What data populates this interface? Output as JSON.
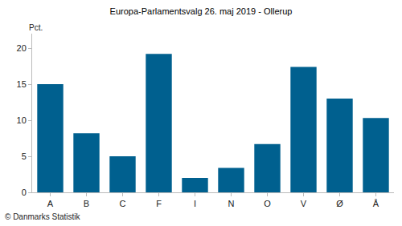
{
  "chart_data": {
    "type": "bar",
    "title": "Europa-Parlamentsvalg 26. maj 2019 - Ollerup",
    "ylabel": "Pct.",
    "source": "© Danmarks Statistik",
    "categories": [
      "A",
      "B",
      "C",
      "F",
      "I",
      "N",
      "O",
      "V",
      "Ø",
      "Å"
    ],
    "values": [
      15.0,
      8.2,
      5.0,
      19.2,
      2.0,
      3.4,
      6.7,
      17.4,
      13.0,
      10.3
    ],
    "color": "#00608f",
    "ylim": [
      0,
      22
    ],
    "yticks": [
      0,
      5,
      10,
      15,
      20
    ],
    "grid": false
  }
}
